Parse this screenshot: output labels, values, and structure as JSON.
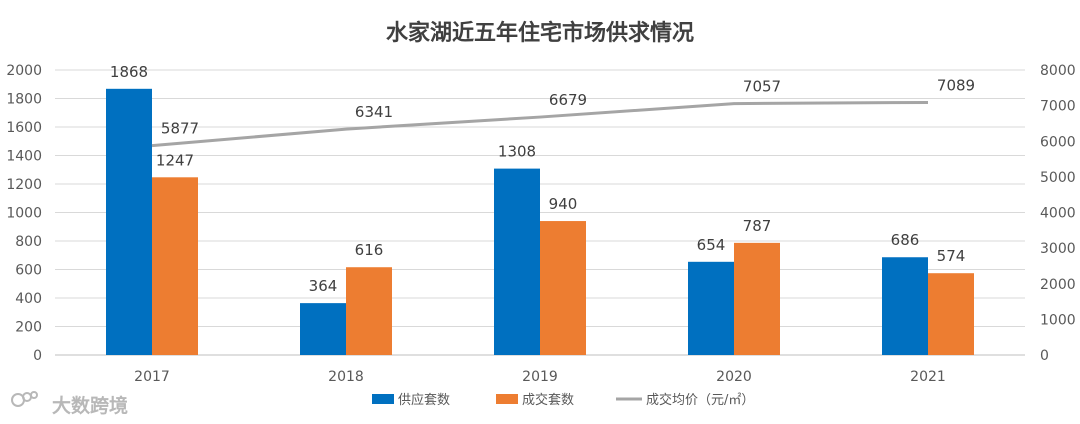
{
  "chart_data": {
    "type": "bar",
    "title": "水家湖近五年住宅市场供求情况",
    "categories": [
      "2017",
      "2018",
      "2019",
      "2020",
      "2021"
    ],
    "series": [
      {
        "name": "供应套数",
        "type": "bar",
        "axis": "left",
        "color": "#0070C0",
        "values": [
          1868,
          364,
          1308,
          654,
          686
        ]
      },
      {
        "name": "成交套数",
        "type": "bar",
        "axis": "left",
        "color": "#ED7D31",
        "values": [
          1247,
          616,
          940,
          787,
          574
        ]
      },
      {
        "name": "成交均价（元/㎡）",
        "type": "line",
        "axis": "right",
        "color": "#A5A5A5",
        "values": [
          5877,
          6341,
          6679,
          7057,
          7089
        ]
      }
    ],
    "y_left": {
      "min": 0,
      "max": 2000,
      "ticks": [
        0,
        200,
        400,
        600,
        800,
        1000,
        1200,
        1400,
        1600,
        1800,
        2000
      ]
    },
    "y_right": {
      "min": 0,
      "max": 8000,
      "ticks": [
        0,
        1000,
        2000,
        3000,
        4000,
        5000,
        6000,
        7000,
        8000
      ]
    },
    "legend_position": "bottom"
  },
  "watermark": {
    "text": "大数跨境",
    "icon": "logo-icon"
  }
}
